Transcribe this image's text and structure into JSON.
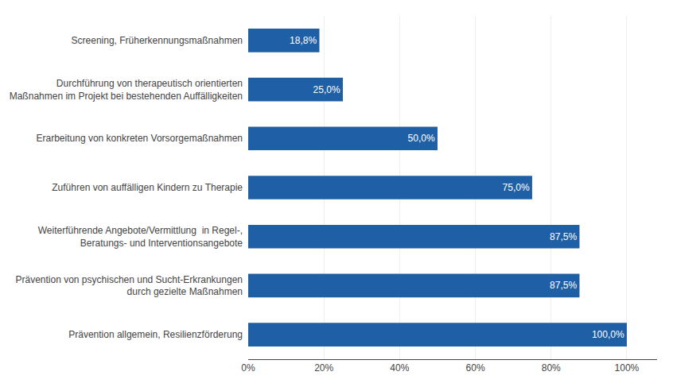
{
  "chart_data": {
    "type": "bar",
    "orientation": "horizontal",
    "categories": [
      "Prävention allgemein, Resilienzförderung",
      "Prävention von psychischen und Sucht-Erkrankungen\ndurch gezielte Maßnahmen",
      "Weiterführende Angebote/Vermittlung  in Regel-,\nBeratungs- und Interventionsangebote",
      "Zuführen von auffälligen Kindern zu Therapie",
      "Erarbeitung von konkreten Vorsorgemaßnahmen",
      "Durchführung von therapeutisch orientierten\nMaßnahmen im Projekt bei bestehenden Auffälligkeiten",
      "Screening, Früherkennungsmaßnahmen"
    ],
    "values": [
      100.0,
      87.5,
      87.5,
      75.0,
      50.0,
      25.0,
      18.8
    ],
    "value_labels": [
      "100,0%",
      "87,5%",
      "87,5%",
      "75,0%",
      "50,0%",
      "25,0%",
      "18,8%"
    ],
    "data_labels": true,
    "color": "#1F5FA6",
    "xlim": [
      0,
      108
    ],
    "xticks": [
      {
        "value": 0,
        "label": "0%"
      },
      {
        "value": 20,
        "label": "20%"
      },
      {
        "value": 40,
        "label": "40%"
      },
      {
        "value": 60,
        "label": "60%"
      },
      {
        "value": 80,
        "label": "80%"
      },
      {
        "value": 100,
        "label": "100%"
      }
    ],
    "grid": true
  }
}
